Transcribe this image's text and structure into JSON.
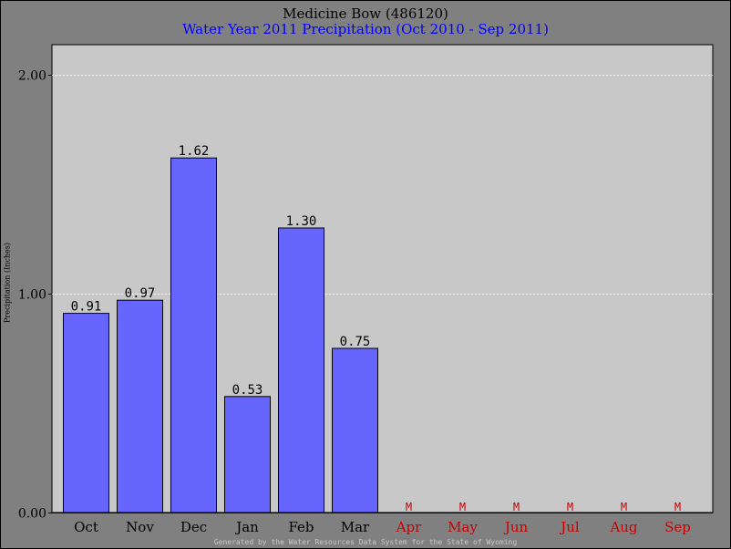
{
  "chart_data": {
    "type": "bar",
    "title": "Medicine Bow (486120)",
    "subtitle": "Water Year 2011 Precipitation (Oct 2010 - Sep 2011)",
    "ylabel": "Precipitation (Inches)",
    "xlabel": "",
    "ylim": [
      0,
      2.0
    ],
    "yticks": [
      "0.00",
      "1.00",
      "2.00"
    ],
    "grid": true,
    "categories": [
      "Oct",
      "Nov",
      "Dec",
      "Jan",
      "Feb",
      "Mar",
      "Apr",
      "May",
      "Jun",
      "Jul",
      "Aug",
      "Sep"
    ],
    "values": [
      0.91,
      0.97,
      1.62,
      0.53,
      1.3,
      0.75,
      null,
      null,
      null,
      null,
      null,
      null
    ],
    "value_labels": [
      "0.91",
      "0.97",
      "1.62",
      "0.53",
      "1.30",
      "0.75",
      "M",
      "M",
      "M",
      "M",
      "M",
      "M"
    ],
    "missing_marker": "M",
    "colors": {
      "bar": "#6666ff",
      "missing": "#cc0000",
      "plot_bg": "#c8c8c8",
      "grid": "#ffffff",
      "subtitle": "#0000ff"
    }
  },
  "footer": "Generated by the Water Resources Data System for the State of Wyoming"
}
